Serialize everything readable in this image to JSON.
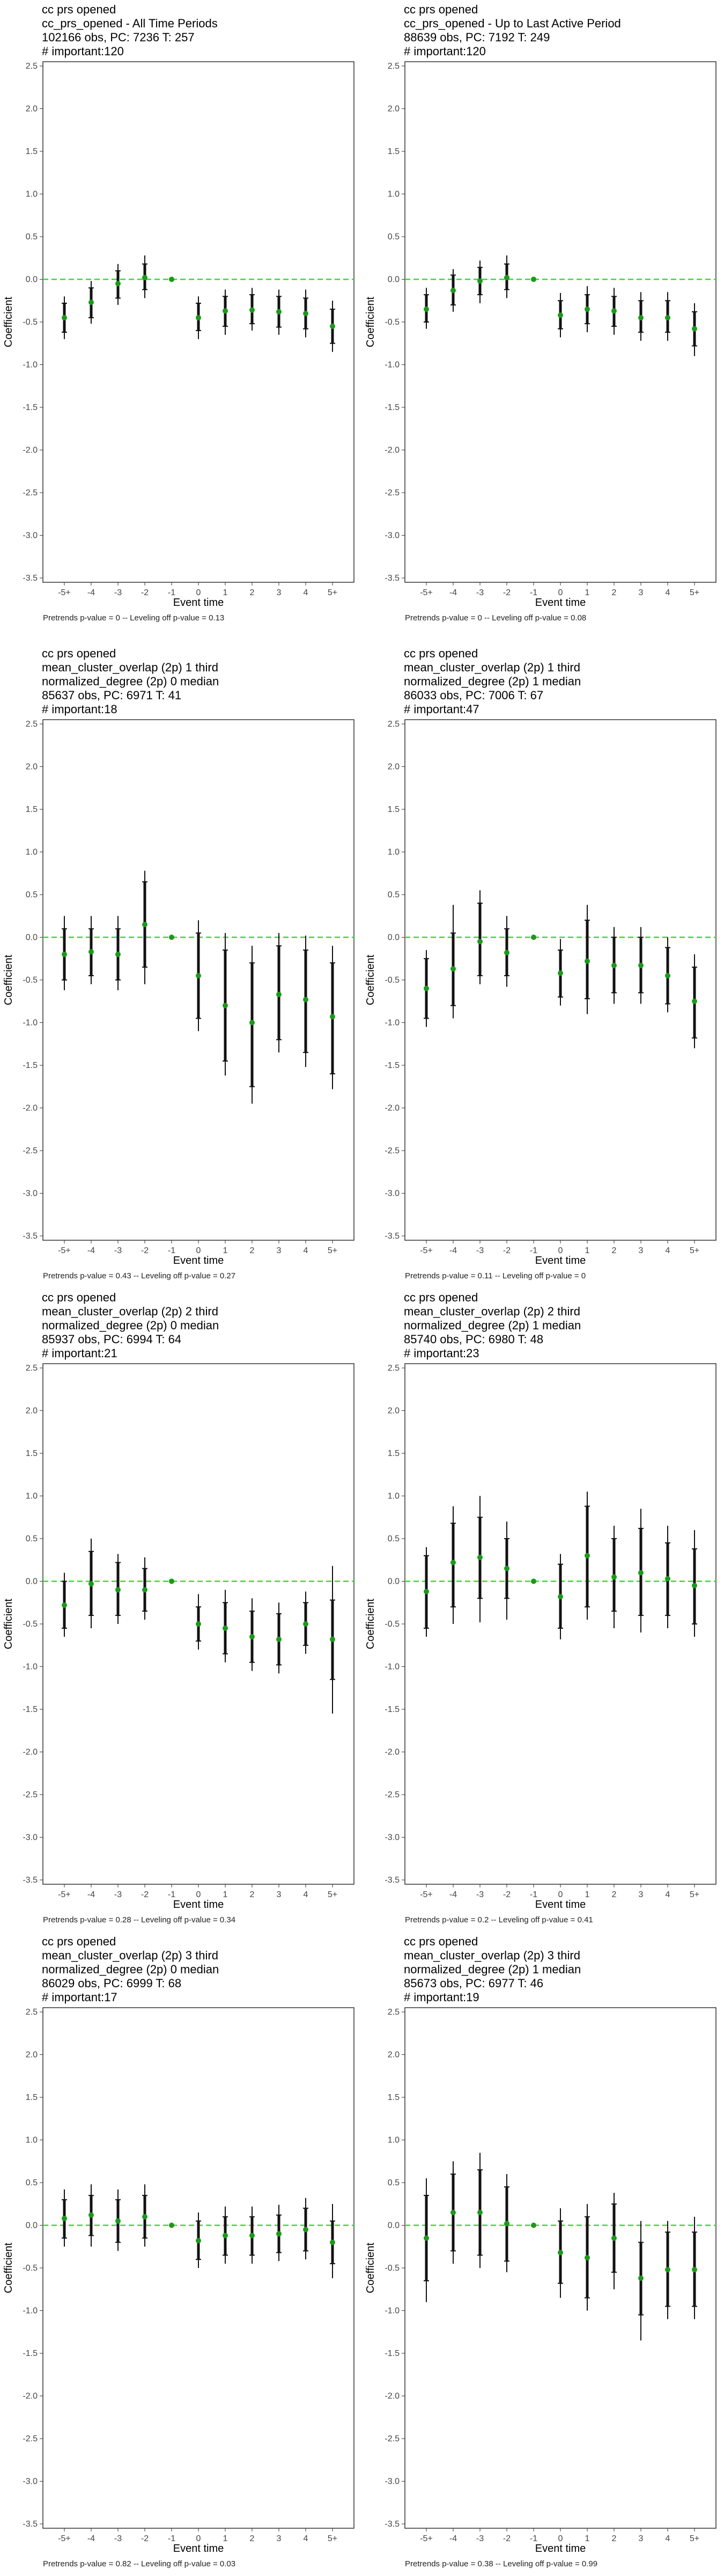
{
  "chart_data": [
    {
      "type": "scatter",
      "title_lines": [
        "cc prs opened",
        "cc_prs_opened - All Time Periods",
        "102166 obs, PC: 7236 T: 257",
        "# important:120"
      ],
      "footnote": "Pretrends p-value = 0 -- Leveling off p-value = 0.13",
      "xlabel": "Event time",
      "ylabel": "Coefficient",
      "categories": [
        "-5+",
        "-4",
        "-3",
        "-2",
        "-1",
        "0",
        "1",
        "2",
        "3",
        "4",
        "5+"
      ],
      "ylim": [
        -3.5,
        2.5
      ],
      "yticks": [
        "2.5",
        "2.0",
        "1.5",
        "1.0",
        "0.5",
        "0.0",
        "-0.5",
        "-1.0",
        "-1.5",
        "-2.0",
        "-2.5",
        "-3.0",
        "-3.5"
      ],
      "reference_line": 0,
      "series": [
        {
          "values": [
            -0.45,
            -0.27,
            -0.05,
            0.02,
            0,
            -0.45,
            -0.37,
            -0.36,
            -0.38,
            -0.4,
            -0.55
          ],
          "ci90_low": [
            -0.62,
            -0.45,
            -0.22,
            -0.12,
            0,
            -0.6,
            -0.55,
            -0.52,
            -0.56,
            -0.58,
            -0.75
          ],
          "ci90_high": [
            -0.28,
            -0.1,
            0.1,
            0.18,
            0,
            -0.28,
            -0.2,
            -0.18,
            -0.2,
            -0.22,
            -0.35
          ],
          "ci95_low": [
            -0.7,
            -0.52,
            -0.3,
            -0.22,
            0,
            -0.7,
            -0.65,
            -0.6,
            -0.65,
            -0.68,
            -0.85
          ],
          "ci95_high": [
            -0.2,
            -0.02,
            0.18,
            0.28,
            0,
            -0.2,
            -0.12,
            -0.1,
            -0.12,
            -0.12,
            -0.25
          ]
        }
      ]
    },
    {
      "type": "scatter",
      "title_lines": [
        "cc prs opened",
        "cc_prs_opened - Up to Last Active Period",
        "88639 obs, PC: 7192 T: 249",
        "# important:120"
      ],
      "footnote": "Pretrends p-value = 0 -- Leveling off p-value = 0.08",
      "xlabel": "Event time",
      "ylabel": "Coefficient",
      "categories": [
        "-5+",
        "-4",
        "-3",
        "-2",
        "-1",
        "0",
        "1",
        "2",
        "3",
        "4",
        "5+"
      ],
      "ylim": [
        -3.5,
        2.5
      ],
      "yticks": [
        "2.5",
        "2.0",
        "1.5",
        "1.0",
        "0.5",
        "0.0",
        "-0.5",
        "-1.0",
        "-1.5",
        "-2.0",
        "-2.5",
        "-3.0",
        "-3.5"
      ],
      "reference_line": 0,
      "series": [
        {
          "values": [
            -0.35,
            -0.13,
            -0.02,
            0.02,
            0,
            -0.42,
            -0.35,
            -0.37,
            -0.45,
            -0.45,
            -0.58
          ],
          "ci90_low": [
            -0.5,
            -0.3,
            -0.18,
            -0.12,
            0,
            -0.58,
            -0.52,
            -0.55,
            -0.62,
            -0.62,
            -0.78
          ],
          "ci90_high": [
            -0.18,
            0.05,
            0.14,
            0.18,
            0,
            -0.25,
            -0.18,
            -0.2,
            -0.25,
            -0.25,
            -0.38
          ],
          "ci95_low": [
            -0.58,
            -0.38,
            -0.28,
            -0.22,
            0,
            -0.68,
            -0.62,
            -0.65,
            -0.72,
            -0.72,
            -0.9
          ],
          "ci95_high": [
            -0.1,
            0.12,
            0.22,
            0.28,
            0,
            -0.16,
            -0.08,
            -0.1,
            -0.15,
            -0.15,
            -0.28
          ]
        }
      ]
    },
    {
      "type": "scatter",
      "title_lines": [
        "cc prs opened",
        "mean_cluster_overlap (2p) 1 third",
        "normalized_degree (2p) 0 median",
        "85637 obs, PC: 6971 T: 41",
        "# important:18"
      ],
      "footnote": "Pretrends p-value = 0.43 -- Leveling off p-value = 0.27",
      "xlabel": "Event time",
      "ylabel": "Coefficient",
      "categories": [
        "-5+",
        "-4",
        "-3",
        "-2",
        "-1",
        "0",
        "1",
        "2",
        "3",
        "4",
        "5+"
      ],
      "ylim": [
        -3.5,
        2.5
      ],
      "yticks": [
        "2.5",
        "2.0",
        "1.5",
        "1.0",
        "0.5",
        "0.0",
        "-0.5",
        "-1.0",
        "-1.5",
        "-2.0",
        "-2.5",
        "-3.0",
        "-3.5"
      ],
      "reference_line": 0,
      "series": [
        {
          "values": [
            -0.2,
            -0.17,
            -0.2,
            0.15,
            0,
            -0.45,
            -0.8,
            -1.0,
            -0.67,
            -0.73,
            -0.93
          ],
          "ci90_low": [
            -0.5,
            -0.45,
            -0.5,
            -0.35,
            0,
            -0.95,
            -1.45,
            -1.75,
            -1.2,
            -1.35,
            -1.6
          ],
          "ci90_high": [
            0.1,
            0.1,
            0.1,
            0.65,
            0,
            0.05,
            -0.15,
            -0.3,
            -0.1,
            -0.15,
            -0.3
          ],
          "ci95_low": [
            -0.62,
            -0.55,
            -0.62,
            -0.55,
            0,
            -1.1,
            -1.62,
            -1.95,
            -1.35,
            -1.52,
            -1.78
          ],
          "ci95_high": [
            0.25,
            0.25,
            0.25,
            0.78,
            0,
            0.2,
            0.05,
            -0.1,
            0.05,
            0.02,
            -0.1
          ]
        }
      ]
    },
    {
      "type": "scatter",
      "title_lines": [
        "cc prs opened",
        "mean_cluster_overlap (2p) 1 third",
        "normalized_degree (2p) 1 median",
        "86033 obs, PC: 7006 T: 67",
        "# important:47"
      ],
      "footnote": "Pretrends p-value = 0.11 -- Leveling off p-value = 0",
      "xlabel": "Event time",
      "ylabel": "Coefficient",
      "categories": [
        "-5+",
        "-4",
        "-3",
        "-2",
        "-1",
        "0",
        "1",
        "2",
        "3",
        "4",
        "5+"
      ],
      "ylim": [
        -3.5,
        2.5
      ],
      "yticks": [
        "2.5",
        "2.0",
        "1.5",
        "1.0",
        "0.5",
        "0.0",
        "-0.5",
        "-1.0",
        "-1.5",
        "-2.0",
        "-2.5",
        "-3.0",
        "-3.5"
      ],
      "reference_line": 0,
      "series": [
        {
          "values": [
            -0.6,
            -0.37,
            -0.05,
            -0.18,
            0,
            -0.42,
            -0.28,
            -0.33,
            -0.33,
            -0.45,
            -0.75
          ],
          "ci90_low": [
            -0.95,
            -0.8,
            -0.45,
            -0.45,
            0,
            -0.7,
            -0.72,
            -0.65,
            -0.65,
            -0.78,
            -1.18
          ],
          "ci90_high": [
            -0.25,
            0.05,
            0.4,
            0.1,
            0,
            -0.15,
            0.2,
            0.0,
            0.0,
            -0.12,
            -0.35
          ],
          "ci95_low": [
            -1.05,
            -0.95,
            -0.55,
            -0.58,
            0,
            -0.8,
            -0.9,
            -0.78,
            -0.78,
            -0.88,
            -1.3
          ],
          "ci95_high": [
            -0.15,
            0.38,
            0.55,
            0.25,
            0,
            -0.02,
            0.38,
            0.12,
            0.12,
            0.0,
            -0.2
          ]
        }
      ]
    },
    {
      "type": "scatter",
      "title_lines": [
        "cc prs opened",
        "mean_cluster_overlap (2p) 2 third",
        "normalized_degree (2p) 0 median",
        "85937 obs, PC: 6994 T: 64",
        "# important:21"
      ],
      "footnote": "Pretrends p-value = 0.28 -- Leveling off p-value = 0.34",
      "xlabel": "Event time",
      "ylabel": "Coefficient",
      "categories": [
        "-5+",
        "-4",
        "-3",
        "-2",
        "-1",
        "0",
        "1",
        "2",
        "3",
        "4",
        "5+"
      ],
      "ylim": [
        -3.5,
        2.5
      ],
      "yticks": [
        "2.5",
        "2.0",
        "1.5",
        "1.0",
        "0.5",
        "0.0",
        "-0.5",
        "-1.0",
        "-1.5",
        "-2.0",
        "-2.5",
        "-3.0",
        "-3.5"
      ],
      "reference_line": 0,
      "series": [
        {
          "values": [
            -0.28,
            -0.03,
            -0.1,
            -0.1,
            0,
            -0.5,
            -0.55,
            -0.65,
            -0.68,
            -0.5,
            -0.68
          ],
          "ci90_low": [
            -0.55,
            -0.4,
            -0.4,
            -0.35,
            0,
            -0.7,
            -0.85,
            -0.95,
            -0.98,
            -0.75,
            -1.15
          ],
          "ci90_high": [
            0.0,
            0.35,
            0.22,
            0.15,
            0,
            -0.3,
            -0.25,
            -0.35,
            -0.38,
            -0.25,
            -0.22
          ],
          "ci95_low": [
            -0.65,
            -0.55,
            -0.5,
            -0.45,
            0,
            -0.8,
            -0.95,
            -1.05,
            -1.08,
            -0.85,
            -1.55
          ],
          "ci95_high": [
            0.1,
            0.5,
            0.32,
            0.28,
            0,
            -0.15,
            -0.1,
            -0.2,
            -0.25,
            -0.12,
            0.18
          ]
        }
      ]
    },
    {
      "type": "scatter",
      "title_lines": [
        "cc prs opened",
        "mean_cluster_overlap (2p) 2 third",
        "normalized_degree (2p) 1 median",
        "85740 obs, PC: 6980 T: 48",
        "# important:23"
      ],
      "footnote": "Pretrends p-value = 0.2 -- Leveling off p-value = 0.41",
      "xlabel": "Event time",
      "ylabel": "Coefficient",
      "categories": [
        "-5+",
        "-4",
        "-3",
        "-2",
        "-1",
        "0",
        "1",
        "2",
        "3",
        "4",
        "5+"
      ],
      "ylim": [
        -3.5,
        2.5
      ],
      "yticks": [
        "2.5",
        "2.0",
        "1.5",
        "1.0",
        "0.5",
        "0.0",
        "-0.5",
        "-1.0",
        "-1.5",
        "-2.0",
        "-2.5",
        "-3.0",
        "-3.5"
      ],
      "reference_line": 0,
      "series": [
        {
          "values": [
            -0.12,
            0.22,
            0.28,
            0.15,
            0,
            -0.18,
            0.3,
            0.05,
            0.1,
            0.03,
            -0.05
          ],
          "ci90_low": [
            -0.55,
            -0.3,
            -0.2,
            -0.2,
            0,
            -0.55,
            -0.3,
            -0.35,
            -0.4,
            -0.4,
            -0.5
          ],
          "ci90_high": [
            0.3,
            0.68,
            0.75,
            0.5,
            0,
            0.2,
            0.88,
            0.5,
            0.62,
            0.45,
            0.38
          ],
          "ci95_low": [
            -0.65,
            -0.5,
            -0.48,
            -0.45,
            0,
            -0.68,
            -0.45,
            -0.55,
            -0.6,
            -0.55,
            -0.65
          ],
          "ci95_high": [
            0.4,
            0.88,
            1.0,
            0.7,
            0,
            0.32,
            1.05,
            0.65,
            0.85,
            0.65,
            0.6
          ]
        }
      ]
    },
    {
      "type": "scatter",
      "title_lines": [
        "cc prs opened",
        "mean_cluster_overlap (2p) 3 third",
        "normalized_degree (2p) 0 median",
        "86029 obs, PC: 6999 T: 68",
        "# important:17"
      ],
      "footnote": "Pretrends p-value = 0.82 -- Leveling off p-value = 0.03",
      "xlabel": "Event time",
      "ylabel": "Coefficient",
      "categories": [
        "-5+",
        "-4",
        "-3",
        "-2",
        "-1",
        "0",
        "1",
        "2",
        "3",
        "4",
        "5+"
      ],
      "ylim": [
        -3.5,
        2.5
      ],
      "yticks": [
        "2.5",
        "2.0",
        "1.5",
        "1.0",
        "0.5",
        "0.0",
        "-0.5",
        "-1.0",
        "-1.5",
        "-2.0",
        "-2.5",
        "-3.0",
        "-3.5"
      ],
      "reference_line": 0,
      "series": [
        {
          "values": [
            0.08,
            0.12,
            0.05,
            0.1,
            0,
            -0.18,
            -0.12,
            -0.12,
            -0.1,
            -0.05,
            -0.2
          ],
          "ci90_low": [
            -0.15,
            -0.12,
            -0.2,
            -0.15,
            0,
            -0.4,
            -0.35,
            -0.35,
            -0.32,
            -0.3,
            -0.45
          ],
          "ci90_high": [
            0.3,
            0.35,
            0.3,
            0.35,
            0,
            0.05,
            0.1,
            0.1,
            0.12,
            0.2,
            0.05
          ],
          "ci95_low": [
            -0.25,
            -0.25,
            -0.3,
            -0.25,
            0,
            -0.5,
            -0.45,
            -0.45,
            -0.42,
            -0.4,
            -0.62
          ],
          "ci95_high": [
            0.42,
            0.48,
            0.42,
            0.48,
            0,
            0.15,
            0.22,
            0.22,
            0.24,
            0.32,
            0.25
          ]
        }
      ]
    },
    {
      "type": "scatter",
      "title_lines": [
        "cc prs opened",
        "mean_cluster_overlap (2p) 3 third",
        "normalized_degree (2p) 1 median",
        "85673 obs, PC: 6977 T: 46",
        "# important:19"
      ],
      "footnote": "Pretrends p-value = 0.38 -- Leveling off p-value = 0.99",
      "xlabel": "Event time",
      "ylabel": "Coefficient",
      "categories": [
        "-5+",
        "-4",
        "-3",
        "-2",
        "-1",
        "0",
        "1",
        "2",
        "3",
        "4",
        "5+"
      ],
      "ylim": [
        -3.5,
        2.5
      ],
      "yticks": [
        "2.5",
        "2.0",
        "1.5",
        "1.0",
        "0.5",
        "0.0",
        "-0.5",
        "-1.0",
        "-1.5",
        "-2.0",
        "-2.5",
        "-3.0",
        "-3.5"
      ],
      "reference_line": 0,
      "series": [
        {
          "values": [
            -0.15,
            0.15,
            0.15,
            0.02,
            0,
            -0.32,
            -0.38,
            -0.15,
            -0.62,
            -0.52,
            -0.52
          ],
          "ci90_low": [
            -0.65,
            -0.3,
            -0.35,
            -0.42,
            0,
            -0.68,
            -0.85,
            -0.55,
            -1.05,
            -0.95,
            -0.95
          ],
          "ci90_high": [
            0.35,
            0.6,
            0.65,
            0.45,
            0,
            0.05,
            0.1,
            0.25,
            -0.2,
            -0.08,
            -0.08
          ],
          "ci95_low": [
            -0.9,
            -0.45,
            -0.5,
            -0.55,
            0,
            -0.85,
            -1.0,
            -0.75,
            -1.35,
            -1.1,
            -1.1
          ],
          "ci95_high": [
            0.55,
            0.75,
            0.85,
            0.6,
            0,
            0.2,
            0.25,
            0.38,
            0.05,
            0.05,
            0.1
          ]
        }
      ]
    }
  ],
  "colors": {
    "point": "#1a9a1a",
    "reference_line": "#33dd33",
    "errorbar": "#111111",
    "axis": "#333333"
  }
}
